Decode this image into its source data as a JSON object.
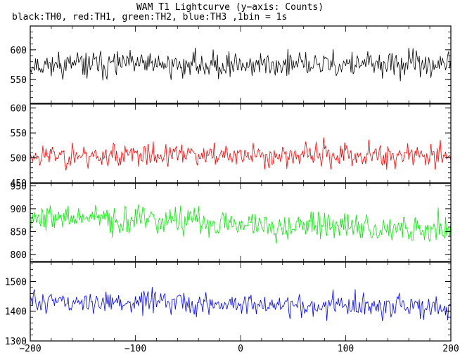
{
  "title": "WAM T1 Lightcurve (y−axis: Counts)",
  "subtitle": "black:TH0, red:TH1, green:TH2, blue:TH3 ,1bin = 1s",
  "chart_data": {
    "type": "line",
    "title": "WAM T1 Lightcurve (y−axis: Counts)",
    "subtitle": "black:TH0, red:TH1, green:TH2, blue:TH3 ,1bin = 1s",
    "xlim": [
      -200,
      200
    ],
    "xticks": [
      -200,
      -100,
      0,
      100,
      200
    ],
    "xtick_labels": [
      "−200",
      "−100",
      "0",
      "100",
      "200"
    ],
    "legend_text": "black:TH0, red:TH1, green:TH2, blue:TH3 ,1bin = 1s",
    "panels": [
      {
        "name": "TH0",
        "color": "#000000",
        "ylim": [
          510,
          640
        ],
        "yticks": [
          550,
          600
        ],
        "mean": 575,
        "noise": 18,
        "trend": 0,
        "seed": 11
      },
      {
        "name": "TH1",
        "color": "#ff0000",
        "ylim": [
          450,
          608
        ],
        "yticks": [
          450,
          500,
          550,
          600
        ],
        "mean": 505,
        "noise": 20,
        "trend": 0,
        "seed": 23
      },
      {
        "name": "TH2",
        "color": "#00ee00",
        "ylim": [
          785,
          955
        ],
        "yticks": [
          800,
          850,
          900,
          950
        ],
        "mean": 868,
        "noise": 25,
        "trend": -28,
        "seed": 37
      },
      {
        "name": "TH3",
        "color": "#0000ff",
        "ylim": [
          1300,
          1565
        ],
        "yticks": [
          1300,
          1400,
          1500
        ],
        "mean": 1422,
        "noise": 32,
        "trend": -25,
        "seed": 51
      }
    ]
  }
}
